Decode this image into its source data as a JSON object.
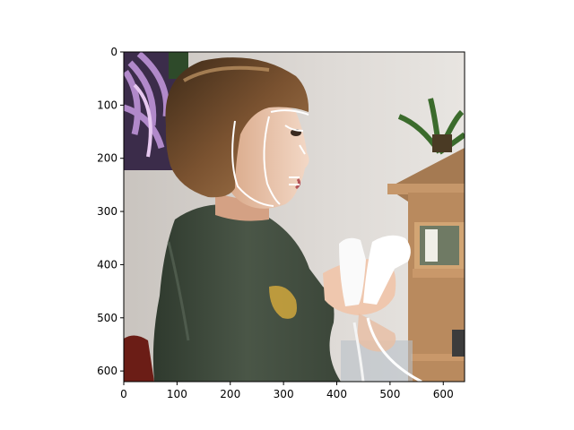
{
  "figure": {
    "x_axis": {
      "range": [
        0,
        640
      ],
      "ticks": [
        0,
        100,
        200,
        300,
        400,
        500,
        600
      ]
    },
    "y_axis": {
      "range": [
        0,
        620
      ],
      "ticks": [
        0,
        100,
        200,
        300,
        400,
        500,
        600
      ],
      "inverted": true
    },
    "image": {
      "subject": "child holding white game controller, profile view",
      "overlay_color": "#ffffff"
    },
    "x_tick_labels": [
      "0",
      "100",
      "200",
      "300",
      "400",
      "500",
      "600"
    ],
    "y_tick_labels": [
      "0",
      "100",
      "200",
      "300",
      "400",
      "500",
      "600"
    ]
  }
}
